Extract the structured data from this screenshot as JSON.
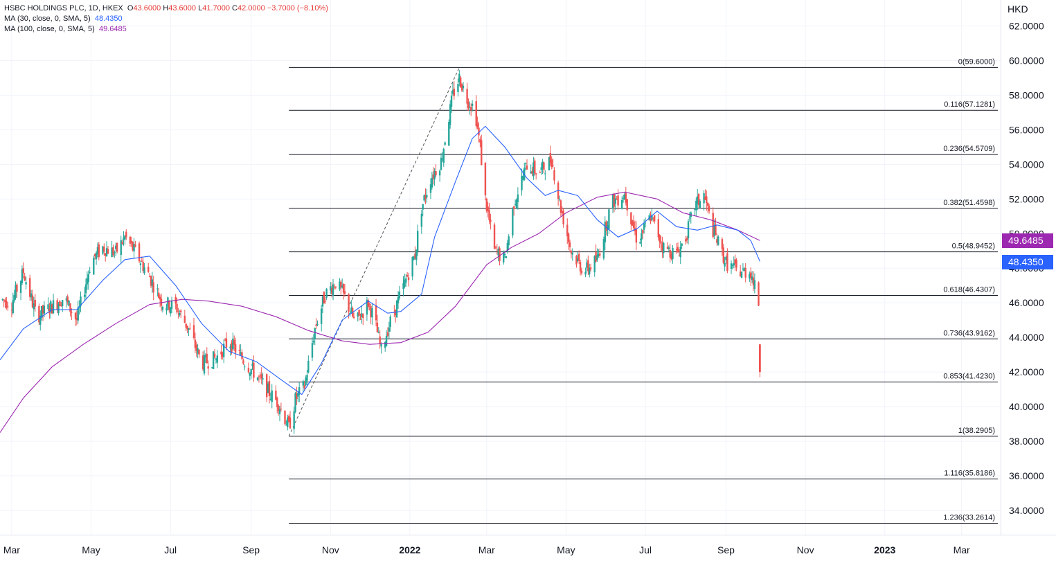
{
  "header": {
    "symbol": "HSBC HOLDINGS PLC, 1D, HKEX",
    "open_label": "O",
    "open": "43.6000",
    "high_label": "H",
    "high": "43.6000",
    "low_label": "L",
    "low": "41.7000",
    "close_label": "C",
    "close": "42.0000",
    "change": "−3.7000 (−8.10%)",
    "ma30_label": "MA (30, close, 0, SMA, 5)",
    "ma30_value": "48.4350",
    "ma100_label": "MA (100, close, 0, SMA, 5)",
    "ma100_value": "49.6485"
  },
  "currency": "HKD",
  "badges": {
    "ma100": "49.6485",
    "ma30": "48.4350"
  },
  "colors": {
    "up": "#26a69a",
    "down": "#ef5350",
    "ma30": "#2962ff",
    "ma100": "#9c27b0",
    "fib_line": "#131722"
  },
  "chart_data": {
    "type": "candlestick",
    "y_axis": {
      "range": [
        32.6,
        63.5
      ],
      "ticks": [
        "62.0000",
        "60.0000",
        "58.0000",
        "56.0000",
        "54.0000",
        "52.0000",
        "50.0000",
        "48.0000",
        "46.0000",
        "44.0000",
        "42.0000",
        "40.0000",
        "38.0000",
        "36.0000",
        "34.0000"
      ]
    },
    "x_axis": {
      "range": [
        "2021-02-20",
        "2023-03-31"
      ],
      "ticks": [
        {
          "label": "Mar",
          "date": "2021-03-01",
          "bold": false
        },
        {
          "label": "May",
          "date": "2021-05-01",
          "bold": false
        },
        {
          "label": "Jul",
          "date": "2021-07-01",
          "bold": false
        },
        {
          "label": "Sep",
          "date": "2021-09-01",
          "bold": false
        },
        {
          "label": "Nov",
          "date": "2021-11-01",
          "bold": false
        },
        {
          "label": "2022",
          "date": "2022-01-01",
          "bold": true
        },
        {
          "label": "Mar",
          "date": "2022-03-01",
          "bold": false
        },
        {
          "label": "May",
          "date": "2022-05-01",
          "bold": false
        },
        {
          "label": "Jul",
          "date": "2022-07-01",
          "bold": false
        },
        {
          "label": "Sep",
          "date": "2022-09-01",
          "bold": false
        },
        {
          "label": "Nov",
          "date": "2022-11-01",
          "bold": false
        },
        {
          "label": "2023",
          "date": "2023-01-01",
          "bold": true
        },
        {
          "label": "Mar",
          "date": "2023-03-01",
          "bold": false
        }
      ]
    },
    "price_path": [
      [
        "2021-02-20",
        46.2
      ],
      [
        "2021-03-01",
        46.0
      ],
      [
        "2021-03-10",
        47.8
      ],
      [
        "2021-03-20",
        45.2
      ],
      [
        "2021-04-01",
        45.8
      ],
      [
        "2021-04-10",
        46.3
      ],
      [
        "2021-04-20",
        45.0
      ],
      [
        "2021-05-01",
        48.4
      ],
      [
        "2021-05-10",
        49.2
      ],
      [
        "2021-05-20",
        48.9
      ],
      [
        "2021-05-27",
        49.8
      ],
      [
        "2021-06-05",
        48.8
      ],
      [
        "2021-06-15",
        47.5
      ],
      [
        "2021-06-25",
        46.0
      ],
      [
        "2021-07-05",
        45.8
      ],
      [
        "2021-07-15",
        44.5
      ],
      [
        "2021-07-25",
        42.5
      ],
      [
        "2021-08-05",
        42.8
      ],
      [
        "2021-08-15",
        43.8
      ],
      [
        "2021-08-25",
        42.8
      ],
      [
        "2021-09-05",
        41.8
      ],
      [
        "2021-09-15",
        40.8
      ],
      [
        "2021-09-22",
        40.2
      ],
      [
        "2021-09-30",
        38.8
      ],
      [
        "2021-10-05",
        40.4
      ],
      [
        "2021-10-12",
        41.2
      ],
      [
        "2021-10-20",
        44.5
      ],
      [
        "2021-10-28",
        46.5
      ],
      [
        "2021-11-05",
        47.2
      ],
      [
        "2021-11-12",
        46.3
      ],
      [
        "2021-11-20",
        44.8
      ],
      [
        "2021-11-30",
        46.0
      ],
      [
        "2021-12-05",
        45.0
      ],
      [
        "2021-12-10",
        43.2
      ],
      [
        "2021-12-15",
        44.5
      ],
      [
        "2021-12-25",
        46.5
      ],
      [
        "2022-01-05",
        48.8
      ],
      [
        "2022-01-10",
        51.5
      ],
      [
        "2022-01-17",
        53.2
      ],
      [
        "2022-01-25",
        54.2
      ],
      [
        "2022-02-03",
        58.0
      ],
      [
        "2022-02-08",
        59.0
      ],
      [
        "2022-02-14",
        57.8
      ],
      [
        "2022-02-20",
        57.2
      ],
      [
        "2022-02-24",
        55.0
      ],
      [
        "2022-02-28",
        52.0
      ],
      [
        "2022-03-07",
        49.0
      ],
      [
        "2022-03-15",
        48.5
      ],
      [
        "2022-03-22",
        51.8
      ],
      [
        "2022-04-01",
        54.0
      ],
      [
        "2022-04-10",
        53.5
      ],
      [
        "2022-04-20",
        54.3
      ],
      [
        "2022-04-26",
        51.8
      ],
      [
        "2022-05-05",
        49.0
      ],
      [
        "2022-05-15",
        47.8
      ],
      [
        "2022-05-25",
        48.5
      ],
      [
        "2022-06-05",
        51.8
      ],
      [
        "2022-06-15",
        52.3
      ],
      [
        "2022-06-25",
        49.5
      ],
      [
        "2022-07-05",
        51.0
      ],
      [
        "2022-07-15",
        49.2
      ],
      [
        "2022-07-25",
        48.8
      ],
      [
        "2022-08-01",
        49.8
      ],
      [
        "2022-08-08",
        51.6
      ],
      [
        "2022-08-15",
        52.2
      ],
      [
        "2022-08-22",
        50.2
      ],
      [
        "2022-09-01",
        48.3
      ],
      [
        "2022-09-10",
        47.8
      ],
      [
        "2022-09-20",
        47.8
      ],
      [
        "2022-09-26",
        46.0
      ],
      [
        "2022-09-27",
        42.0
      ]
    ],
    "last_candle": {
      "date": "2022-09-27",
      "open": 43.6,
      "high": 43.6,
      "low": 41.7,
      "close": 42.0
    },
    "ma30": [
      [
        "2021-02-20",
        42.7
      ],
      [
        "2021-03-10",
        44.5
      ],
      [
        "2021-04-01",
        45.6
      ],
      [
        "2021-04-20",
        45.6
      ],
      [
        "2021-05-10",
        47.3
      ],
      [
        "2021-05-27",
        48.5
      ],
      [
        "2021-06-15",
        48.7
      ],
      [
        "2021-07-05",
        47.0
      ],
      [
        "2021-07-25",
        44.8
      ],
      [
        "2021-08-15",
        43.2
      ],
      [
        "2021-09-05",
        42.6
      ],
      [
        "2021-09-25",
        41.5
      ],
      [
        "2021-10-10",
        40.7
      ],
      [
        "2021-10-25",
        42.5
      ],
      [
        "2021-11-10",
        45.0
      ],
      [
        "2021-11-30",
        46.1
      ],
      [
        "2021-12-15",
        45.4
      ],
      [
        "2021-12-25",
        45.5
      ],
      [
        "2022-01-10",
        46.5
      ],
      [
        "2022-01-20",
        49.8
      ],
      [
        "2022-02-05",
        53.0
      ],
      [
        "2022-02-18",
        55.5
      ],
      [
        "2022-02-28",
        56.2
      ],
      [
        "2022-03-15",
        55.0
      ],
      [
        "2022-04-01",
        53.2
      ],
      [
        "2022-04-15",
        52.2
      ],
      [
        "2022-04-25",
        52.5
      ],
      [
        "2022-05-10",
        52.2
      ],
      [
        "2022-05-25",
        50.8
      ],
      [
        "2022-06-10",
        49.8
      ],
      [
        "2022-06-25",
        50.3
      ],
      [
        "2022-07-10",
        51.3
      ],
      [
        "2022-07-25",
        50.4
      ],
      [
        "2022-08-10",
        50.2
      ],
      [
        "2022-08-25",
        50.5
      ],
      [
        "2022-09-10",
        50.2
      ],
      [
        "2022-09-20",
        49.6
      ],
      [
        "2022-09-27",
        48.4
      ]
    ],
    "ma100": [
      [
        "2021-02-20",
        38.5
      ],
      [
        "2021-03-10",
        40.5
      ],
      [
        "2021-04-01",
        42.3
      ],
      [
        "2021-04-25",
        43.6
      ],
      [
        "2021-05-20",
        44.8
      ],
      [
        "2021-06-15",
        45.9
      ],
      [
        "2021-07-10",
        46.2
      ],
      [
        "2021-07-30",
        46.1
      ],
      [
        "2021-08-25",
        45.8
      ],
      [
        "2021-09-20",
        45.2
      ],
      [
        "2021-10-15",
        44.4
      ],
      [
        "2021-11-10",
        43.8
      ],
      [
        "2021-12-01",
        43.6
      ],
      [
        "2021-12-25",
        43.7
      ],
      [
        "2022-01-15",
        44.3
      ],
      [
        "2022-02-05",
        45.8
      ],
      [
        "2022-03-01",
        48.2
      ],
      [
        "2022-03-20",
        49.2
      ],
      [
        "2022-04-10",
        50.0
      ],
      [
        "2022-05-01",
        51.2
      ],
      [
        "2022-05-25",
        52.1
      ],
      [
        "2022-06-15",
        52.4
      ],
      [
        "2022-07-10",
        52.0
      ],
      [
        "2022-07-30",
        51.2
      ],
      [
        "2022-08-20",
        50.8
      ],
      [
        "2022-09-10",
        50.2
      ],
      [
        "2022-09-27",
        49.6
      ]
    ],
    "trend_line": {
      "from": [
        "2021-09-30",
        38.29
      ],
      "to": [
        "2022-02-08",
        59.6
      ]
    },
    "fib_start_date": "2021-09-30",
    "fibonacci": [
      {
        "label": "0(59.6000)",
        "price": 59.6
      },
      {
        "label": "0.116(57.1281)",
        "price": 57.1281
      },
      {
        "label": "0.236(54.5709)",
        "price": 54.5709
      },
      {
        "label": "0.382(51.4598)",
        "price": 51.4598
      },
      {
        "label": "0.5(48.9452)",
        "price": 48.9452
      },
      {
        "label": "0.618(46.4307)",
        "price": 46.4307
      },
      {
        "label": "0.736(43.9162)",
        "price": 43.9162
      },
      {
        "label": "0.853(41.4230)",
        "price": 41.423
      },
      {
        "label": "1(38.2905)",
        "price": 38.2905
      },
      {
        "label": "1.116(35.8186)",
        "price": 35.8186
      },
      {
        "label": "1.236(33.2614)",
        "price": 33.2614
      }
    ]
  }
}
